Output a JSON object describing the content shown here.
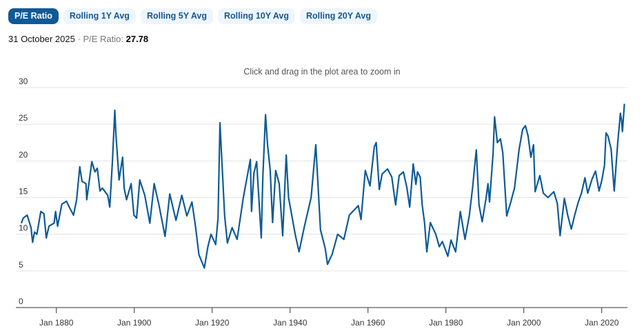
{
  "tabs": [
    {
      "label": "P/E Ratio",
      "active": true
    },
    {
      "label": "Rolling 1Y Avg",
      "active": false
    },
    {
      "label": "Rolling 5Y Avg",
      "active": false
    },
    {
      "label": "Rolling 10Y Avg",
      "active": false
    },
    {
      "label": "Rolling 20Y Avg",
      "active": false
    }
  ],
  "status": {
    "date": "31 October 2025",
    "separator": "·",
    "metric_label": "P/E Ratio:",
    "value": "27.78"
  },
  "colors": {
    "accent": "#0f5a96",
    "line": "#0d5a96",
    "tab_bg": "#eef6fd"
  },
  "chart_data": {
    "type": "line",
    "title": "",
    "subtitle": "Click and drag in the plot area to zoom in",
    "xlabel": "",
    "ylabel": "",
    "xlim": [
      1869.6,
      2026.6
    ],
    "ylim": [
      0,
      30
    ],
    "yticks": [
      "0",
      "5",
      "10",
      "15",
      "20",
      "25",
      "30"
    ],
    "xticks": [
      {
        "year": 1880,
        "label": "Jan 1880"
      },
      {
        "year": 1900,
        "label": "Jan 1900"
      },
      {
        "year": 1920,
        "label": "Jan 1920"
      },
      {
        "year": 1940,
        "label": "Jan 1940"
      },
      {
        "year": 1960,
        "label": "Jan 1960"
      },
      {
        "year": 1980,
        "label": "Jan 1980"
      },
      {
        "year": 2000,
        "label": "Jan 2000"
      },
      {
        "year": 2020,
        "label": "Jan 2020"
      }
    ],
    "grid": true,
    "series": [
      {
        "name": "P/E Ratio",
        "points": [
          [
            1871.0,
            11.5
          ],
          [
            1871.5,
            12.2
          ],
          [
            1872.5,
            12.6
          ],
          [
            1873.5,
            10.9
          ],
          [
            1873.9,
            8.9
          ],
          [
            1874.4,
            10.3
          ],
          [
            1875.0,
            10.0
          ],
          [
            1876.0,
            13.1
          ],
          [
            1876.8,
            12.8
          ],
          [
            1877.4,
            9.5
          ],
          [
            1878.1,
            11.1
          ],
          [
            1879.4,
            11.5
          ],
          [
            1879.8,
            13.1
          ],
          [
            1880.3,
            11.1
          ],
          [
            1881.4,
            14.1
          ],
          [
            1882.6,
            14.5
          ],
          [
            1883.4,
            13.6
          ],
          [
            1884.4,
            12.6
          ],
          [
            1885.2,
            14.7
          ],
          [
            1886.0,
            19.2
          ],
          [
            1886.6,
            17.2
          ],
          [
            1887.6,
            16.9
          ],
          [
            1887.8,
            14.7
          ],
          [
            1889.1,
            19.9
          ],
          [
            1889.9,
            18.5
          ],
          [
            1890.5,
            19.0
          ],
          [
            1891.2,
            15.9
          ],
          [
            1891.8,
            16.3
          ],
          [
            1893.2,
            15.3
          ],
          [
            1893.7,
            13.7
          ],
          [
            1894.4,
            20.0
          ],
          [
            1895.0,
            26.9
          ],
          [
            1895.3,
            23.5
          ],
          [
            1896.1,
            17.4
          ],
          [
            1897.0,
            20.5
          ],
          [
            1897.4,
            16.3
          ],
          [
            1898.0,
            14.7
          ],
          [
            1899.2,
            16.9
          ],
          [
            1899.9,
            12.6
          ],
          [
            1900.6,
            12.2
          ],
          [
            1901.4,
            17.4
          ],
          [
            1902.7,
            15.3
          ],
          [
            1904.0,
            11.5
          ],
          [
            1905.1,
            16.9
          ],
          [
            1906.3,
            14.1
          ],
          [
            1907.9,
            9.7
          ],
          [
            1909.1,
            15.5
          ],
          [
            1910.7,
            11.9
          ],
          [
            1912.2,
            15.3
          ],
          [
            1913.5,
            12.5
          ],
          [
            1914.8,
            14.4
          ],
          [
            1915.7,
            11.1
          ],
          [
            1916.6,
            7.2
          ],
          [
            1918.0,
            5.4
          ],
          [
            1918.9,
            8.3
          ],
          [
            1919.7,
            10.0
          ],
          [
            1920.9,
            8.6
          ],
          [
            1921.5,
            12.2
          ],
          [
            1922.0,
            25.2
          ],
          [
            1923.2,
            12.5
          ],
          [
            1923.9,
            8.8
          ],
          [
            1925.1,
            10.9
          ],
          [
            1926.4,
            9.3
          ],
          [
            1928.0,
            15.0
          ],
          [
            1929.8,
            20.2
          ],
          [
            1930.1,
            13.1
          ],
          [
            1930.7,
            18.3
          ],
          [
            1931.4,
            19.9
          ],
          [
            1932.6,
            9.5
          ],
          [
            1933.0,
            17.8
          ],
          [
            1933.7,
            26.3
          ],
          [
            1934.2,
            22.2
          ],
          [
            1934.9,
            18.7
          ],
          [
            1935.5,
            11.6
          ],
          [
            1936.3,
            18.7
          ],
          [
            1937.2,
            16.9
          ],
          [
            1938.1,
            9.8
          ],
          [
            1939.0,
            20.8
          ],
          [
            1939.6,
            15.0
          ],
          [
            1940.6,
            12.1
          ],
          [
            1941.3,
            10.0
          ],
          [
            1942.3,
            7.6
          ],
          [
            1943.6,
            10.9
          ],
          [
            1945.4,
            15.0
          ],
          [
            1946.6,
            22.2
          ],
          [
            1947.8,
            10.6
          ],
          [
            1949.0,
            8.1
          ],
          [
            1949.6,
            5.9
          ],
          [
            1950.8,
            7.3
          ],
          [
            1952.2,
            10.0
          ],
          [
            1953.8,
            9.3
          ],
          [
            1955.2,
            12.6
          ],
          [
            1957.5,
            13.9
          ],
          [
            1958.2,
            12.0
          ],
          [
            1959.3,
            18.7
          ],
          [
            1960.5,
            16.6
          ],
          [
            1961.6,
            21.9
          ],
          [
            1962.1,
            22.5
          ],
          [
            1962.9,
            16.1
          ],
          [
            1963.6,
            18.2
          ],
          [
            1965.0,
            18.9
          ],
          [
            1966.1,
            17.8
          ],
          [
            1967.1,
            14.0
          ],
          [
            1968.0,
            18.0
          ],
          [
            1969.1,
            18.5
          ],
          [
            1970.0,
            16.3
          ],
          [
            1970.7,
            13.7
          ],
          [
            1971.6,
            19.6
          ],
          [
            1972.3,
            16.8
          ],
          [
            1972.7,
            18.5
          ],
          [
            1973.4,
            17.8
          ],
          [
            1973.9,
            14.0
          ],
          [
            1974.5,
            11.6
          ],
          [
            1975.1,
            7.6
          ],
          [
            1976.0,
            11.6
          ],
          [
            1977.4,
            10.0
          ],
          [
            1978.3,
            8.3
          ],
          [
            1979.1,
            9.0
          ],
          [
            1980.5,
            7.0
          ],
          [
            1981.3,
            9.2
          ],
          [
            1982.5,
            7.6
          ],
          [
            1983.7,
            13.1
          ],
          [
            1984.9,
            9.3
          ],
          [
            1986.0,
            12.5
          ],
          [
            1986.9,
            16.6
          ],
          [
            1987.4,
            19.4
          ],
          [
            1987.8,
            21.5
          ],
          [
            1988.5,
            14.0
          ],
          [
            1989.3,
            11.7
          ],
          [
            1990.3,
            14.9
          ],
          [
            1990.8,
            16.9
          ],
          [
            1991.2,
            14.4
          ],
          [
            1992.1,
            21.0
          ],
          [
            1992.5,
            26.0
          ],
          [
            1993.2,
            22.5
          ],
          [
            1994.0,
            23.0
          ],
          [
            1994.6,
            21.1
          ],
          [
            1995.6,
            12.5
          ],
          [
            1996.7,
            14.5
          ],
          [
            1997.6,
            16.3
          ],
          [
            1998.2,
            18.9
          ],
          [
            1998.8,
            21.6
          ],
          [
            1999.7,
            24.3
          ],
          [
            2000.4,
            24.8
          ],
          [
            2001.1,
            23.4
          ],
          [
            2001.8,
            20.5
          ],
          [
            2002.5,
            22.2
          ],
          [
            2002.9,
            15.8
          ],
          [
            2004.1,
            18.0
          ],
          [
            2005.0,
            15.6
          ],
          [
            2006.2,
            15.0
          ],
          [
            2007.7,
            15.8
          ],
          [
            2008.6,
            14.2
          ],
          [
            2009.3,
            9.8
          ],
          [
            2010.4,
            14.9
          ],
          [
            2011.3,
            12.5
          ],
          [
            2012.2,
            10.7
          ],
          [
            2013.1,
            12.7
          ],
          [
            2014.0,
            14.4
          ],
          [
            2014.8,
            15.6
          ],
          [
            2015.7,
            17.7
          ],
          [
            2016.4,
            15.6
          ],
          [
            2017.5,
            17.5
          ],
          [
            2018.4,
            18.6
          ],
          [
            2019.3,
            15.9
          ],
          [
            2020.0,
            17.3
          ],
          [
            2020.7,
            19.4
          ],
          [
            2021.1,
            23.8
          ],
          [
            2021.6,
            23.4
          ],
          [
            2022.4,
            21.6
          ],
          [
            2023.2,
            15.9
          ],
          [
            2024.1,
            22.5
          ],
          [
            2024.8,
            26.5
          ],
          [
            2025.1,
            25.5
          ],
          [
            2025.3,
            24.0
          ],
          [
            2025.83,
            27.78
          ]
        ]
      }
    ]
  }
}
